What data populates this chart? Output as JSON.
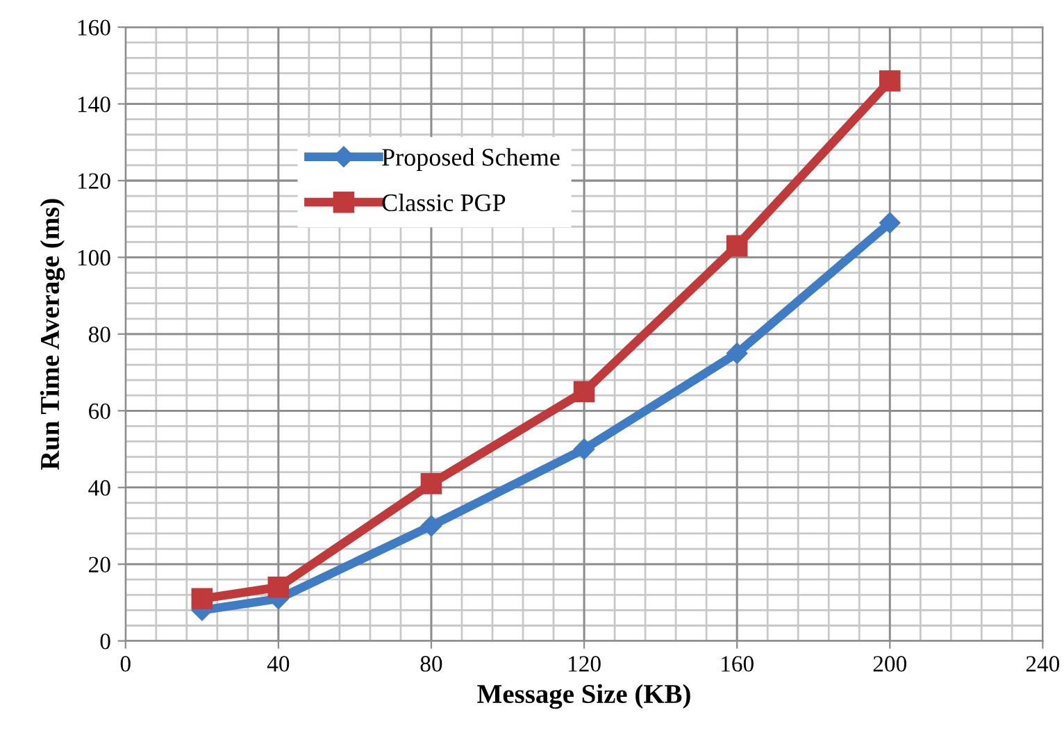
{
  "chart_data": {
    "type": "line",
    "xlabel": "Message Size (KB)",
    "ylabel": "Run Time Average (ms)",
    "x": [
      20,
      40,
      80,
      120,
      160,
      200
    ],
    "series": [
      {
        "name": "Proposed Scheme",
        "color": "#3f7cc4",
        "marker": "diamond",
        "values": [
          8,
          11,
          30,
          50,
          75,
          109
        ]
      },
      {
        "name": "Classic PGP",
        "color": "#c0393b",
        "marker": "square",
        "values": [
          11,
          14,
          41,
          65,
          103,
          146
        ]
      }
    ],
    "xlim": [
      0,
      240
    ],
    "xticks": [
      0,
      40,
      80,
      120,
      160,
      200,
      240
    ],
    "ylim": [
      0,
      160
    ],
    "yticks": [
      0,
      20,
      40,
      60,
      80,
      100,
      120,
      140,
      160
    ],
    "grid": true,
    "legend": "top left",
    "line_style": "solid"
  }
}
